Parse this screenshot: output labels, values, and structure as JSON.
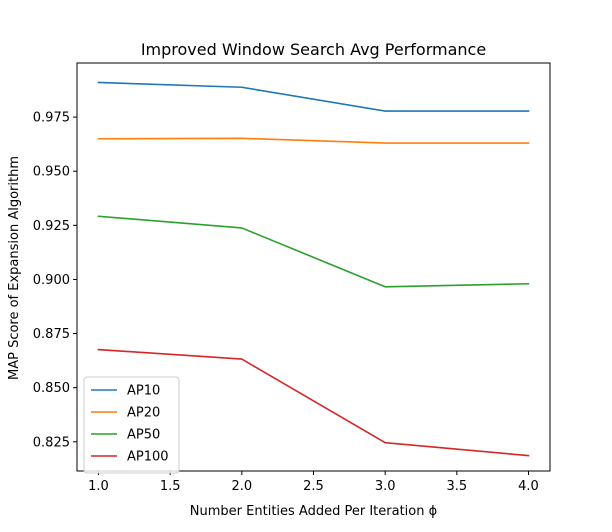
{
  "chart_data": {
    "type": "line",
    "title": "Improved Window Search Avg Performance",
    "xlabel": "Number Entities Added Per Iteration ϕ",
    "ylabel": "MAP Score of Expansion Algorithm",
    "xlim": [
      0.85,
      4.15
    ],
    "ylim": [
      0.8115,
      1.0
    ],
    "xticks": [
      1.0,
      1.5,
      2.0,
      2.5,
      3.0,
      3.5,
      4.0
    ],
    "xtick_labels": [
      "1.0",
      "1.5",
      "2.0",
      "2.5",
      "3.0",
      "3.5",
      "4.0"
    ],
    "yticks": [
      0.825,
      0.85,
      0.875,
      0.9,
      0.925,
      0.95,
      0.975
    ],
    "ytick_labels": [
      "0.825",
      "0.850",
      "0.875",
      "0.900",
      "0.925",
      "0.950",
      "0.975"
    ],
    "grid": false,
    "legend_position": "lower-left",
    "x": [
      1,
      2,
      3,
      4
    ],
    "series": [
      {
        "name": "AP10",
        "color": "#1f77b4",
        "values": [
          0.991,
          0.9888,
          0.9778,
          0.9778
        ]
      },
      {
        "name": "AP20",
        "color": "#ff7f0e",
        "values": [
          0.965,
          0.9652,
          0.963,
          0.963
        ]
      },
      {
        "name": "AP50",
        "color": "#2ca02c",
        "values": [
          0.9292,
          0.9238,
          0.8966,
          0.898
        ]
      },
      {
        "name": "AP100",
        "color": "#d62728",
        "values": [
          0.8676,
          0.8632,
          0.8246,
          0.8186
        ]
      }
    ]
  }
}
